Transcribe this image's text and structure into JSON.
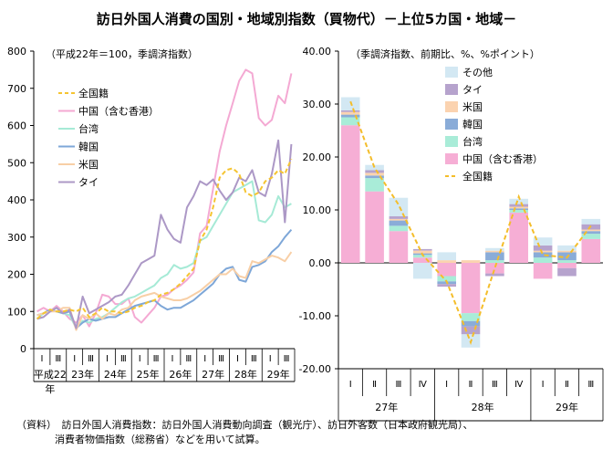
{
  "title": "訪日外国人消費の国別・地域別指数（買物代）－上位5カ国・地域－",
  "source_note": {
    "line1": "（資料）　訪日外国人消費指数：訪日外国人消費動向調査（観光庁）、訪日外客数（日本政府観光局）、",
    "line2": "消費者物価指数（総務省）などを用いて試算。"
  },
  "colors": {
    "all": "#f5c431",
    "china": "#f4a9d3",
    "taiwan": "#a6ead6",
    "korea": "#7ea7d8",
    "us": "#f8cfa6",
    "thai": "#ac98c6",
    "other": "#d3e8f3",
    "china_bar": "#f6aed5",
    "taiwan_bar": "#a9ecd8",
    "korea_bar": "#8aacd8",
    "us_bar": "#fbd3b0",
    "thai_bar": "#b6a3cd",
    "all_bar_line": "#f4bd2a"
  },
  "chart_data": [
    {
      "type": "line",
      "note": "（平成22年＝100，季調済指数）",
      "ylim": [
        0,
        800
      ],
      "yticks": [
        "0",
        "100",
        "200",
        "300",
        "400",
        "500",
        "600",
        "700",
        "800"
      ],
      "quarter_labels": [
        "Ⅰ",
        "Ⅲ",
        "Ⅰ",
        "Ⅲ",
        "Ⅰ",
        "Ⅲ",
        "Ⅰ",
        "Ⅲ",
        "Ⅰ",
        "Ⅲ",
        "Ⅰ",
        "Ⅲ",
        "Ⅰ",
        "Ⅲ",
        "Ⅰ",
        "Ⅲ"
      ],
      "year_labels": [
        "平成22",
        "年",
        "23年",
        "24年",
        "25年",
        "26年",
        "27年",
        "28年",
        "29年"
      ],
      "series": [
        {
          "name": "全国籍",
          "key": "all",
          "dashed": true,
          "values": [
            80,
            95,
            105,
            100,
            100,
            105,
            100,
            110,
            85,
            95,
            110,
            100,
            100,
            95,
            100,
            110,
            115,
            125,
            130,
            145,
            150,
            160,
            175,
            195,
            215,
            290,
            320,
            380,
            460,
            480,
            485,
            470,
            420,
            410,
            420,
            450,
            460,
            480,
            470,
            510
          ]
        },
        {
          "name": "中国（含む香港）",
          "key": "china",
          "values": [
            100,
            110,
            100,
            115,
            100,
            80,
            70,
            90,
            60,
            95,
            145,
            140,
            120,
            120,
            135,
            85,
            70,
            90,
            110,
            140,
            145,
            160,
            170,
            185,
            205,
            310,
            330,
            430,
            530,
            600,
            660,
            720,
            750,
            740,
            620,
            600,
            615,
            680,
            660,
            740
          ]
        },
        {
          "name": "台湾",
          "key": "taiwan",
          "values": [
            80,
            95,
            100,
            110,
            95,
            90,
            55,
            75,
            70,
            80,
            85,
            95,
            110,
            125,
            135,
            140,
            150,
            160,
            170,
            190,
            200,
            225,
            215,
            220,
            230,
            290,
            300,
            330,
            360,
            390,
            420,
            430,
            440,
            450,
            345,
            340,
            360,
            410,
            380,
            390
          ]
        },
        {
          "name": "韓国",
          "key": "korea",
          "values": [
            90,
            95,
            105,
            100,
            95,
            100,
            55,
            70,
            80,
            75,
            80,
            85,
            85,
            95,
            105,
            115,
            120,
            125,
            130,
            115,
            105,
            110,
            110,
            120,
            130,
            145,
            160,
            175,
            200,
            215,
            220,
            185,
            180,
            220,
            225,
            235,
            260,
            275,
            300,
            320
          ]
        },
        {
          "name": "米国",
          "key": "us",
          "values": [
            90,
            95,
            100,
            100,
            110,
            110,
            50,
            90,
            80,
            95,
            80,
            95,
            90,
            105,
            110,
            130,
            140,
            145,
            150,
            140,
            135,
            130,
            130,
            135,
            145,
            155,
            170,
            185,
            200,
            200,
            215,
            195,
            190,
            235,
            230,
            240,
            250,
            245,
            235,
            260
          ]
        },
        {
          "name": "タイ",
          "key": "thai",
          "values": [
            80,
            85,
            100,
            110,
            95,
            105,
            55,
            140,
            95,
            105,
            115,
            125,
            140,
            145,
            170,
            200,
            230,
            240,
            250,
            360,
            320,
            295,
            285,
            380,
            410,
            450,
            440,
            455,
            425,
            400,
            420,
            460,
            450,
            480,
            420,
            410,
            470,
            560,
            340,
            550
          ]
        }
      ]
    },
    {
      "type": "bar",
      "note": "（季調済指数、前期比、%、%ポイント）",
      "ylim": [
        -20,
        40
      ],
      "yticks": [
        "40.00",
        "30.00",
        "20.00",
        "10.00",
        "0.00",
        "-10.00",
        "-20.00"
      ],
      "categories": [
        "Ⅰ",
        "Ⅱ",
        "Ⅲ",
        "Ⅳ",
        "Ⅰ",
        "Ⅱ",
        "Ⅲ",
        "Ⅳ",
        "Ⅰ",
        "Ⅱ",
        "Ⅲ"
      ],
      "years": [
        "27年",
        "28年",
        "29年"
      ],
      "series": [
        {
          "name": "中国（含む香港）",
          "key": "china_bar",
          "values": [
            26.0,
            13.5,
            6.0,
            1.0,
            -2.5,
            -9.5,
            -2.0,
            9.5,
            -3.0,
            -1.0,
            4.5
          ]
        },
        {
          "name": "台湾",
          "key": "taiwan_bar",
          "values": [
            1.5,
            2.5,
            1.0,
            0.5,
            -1.0,
            -1.5,
            0.5,
            0.5,
            1.0,
            0.5,
            1.0
          ]
        },
        {
          "name": "韓国",
          "key": "korea_bar",
          "values": [
            0.5,
            0.5,
            1.0,
            0.3,
            -0.5,
            -1.0,
            1.5,
            0.3,
            1.0,
            1.5,
            0.5
          ]
        },
        {
          "name": "米国",
          "key": "us_bar",
          "values": [
            0.5,
            0.5,
            0.3,
            0.5,
            0.5,
            0.5,
            0.3,
            0.3,
            0.3,
            0.3,
            0.3
          ]
        },
        {
          "name": "タイ",
          "key": "thai_bar",
          "values": [
            0.3,
            0.5,
            0.5,
            0.3,
            -0.5,
            -1.5,
            -0.5,
            0.5,
            1.0,
            -1.5,
            1.0
          ]
        },
        {
          "name": "その他",
          "key": "other",
          "values": [
            2.5,
            1.0,
            3.5,
            -3.0,
            1.5,
            -2.5,
            0.5,
            1.0,
            1.5,
            1.0,
            1.0
          ]
        }
      ],
      "line": {
        "name": "全国籍",
        "key": "all_bar_line",
        "values": [
          30.5,
          18.0,
          11.0,
          1.5,
          -3.5,
          -15.0,
          -1.0,
          12.5,
          1.5,
          1.0,
          7.0
        ]
      },
      "legend_order": [
        "その他",
        "タイ",
        "米国",
        "韓国",
        "台湾",
        "中国（含む香港）",
        "全国籍"
      ]
    }
  ]
}
